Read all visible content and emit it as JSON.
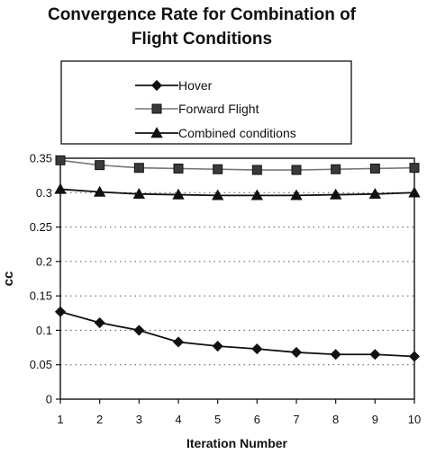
{
  "chart_data": {
    "type": "line",
    "title_lines": [
      "Convergence Rate for Combination of",
      "Flight Conditions"
    ],
    "xlabel": "Iteration Number",
    "ylabel": "cc",
    "x": [
      1,
      2,
      3,
      4,
      5,
      6,
      7,
      8,
      9,
      10
    ],
    "xlim": [
      1,
      10
    ],
    "ylim": [
      0,
      0.35
    ],
    "yticks": [
      0,
      0.05,
      0.1,
      0.15,
      0.2,
      0.25,
      0.3,
      0.35
    ],
    "ytick_labels": [
      "0",
      "0.05",
      "0.1",
      "0.15",
      "0.2",
      "0.25",
      "0.3",
      "0.35"
    ],
    "xtick_labels": [
      "1",
      "2",
      "3",
      "4",
      "5",
      "6",
      "7",
      "8",
      "9",
      "10"
    ],
    "grid": "horizontal-dotted",
    "legend_position": "top",
    "series": [
      {
        "name": "Hover",
        "marker": "diamond",
        "line_color": "#111111",
        "values": [
          0.127,
          0.111,
          0.1,
          0.083,
          0.077,
          0.073,
          0.068,
          0.065,
          0.065,
          0.062
        ]
      },
      {
        "name": "Forward Flight",
        "marker": "square",
        "line_color": "#777777",
        "values": [
          0.347,
          0.34,
          0.336,
          0.335,
          0.334,
          0.333,
          0.333,
          0.334,
          0.335,
          0.336
        ]
      },
      {
        "name": "Combined conditions",
        "marker": "triangle",
        "line_color": "#111111",
        "values": [
          0.305,
          0.301,
          0.298,
          0.297,
          0.296,
          0.296,
          0.296,
          0.297,
          0.298,
          0.3
        ]
      }
    ]
  }
}
